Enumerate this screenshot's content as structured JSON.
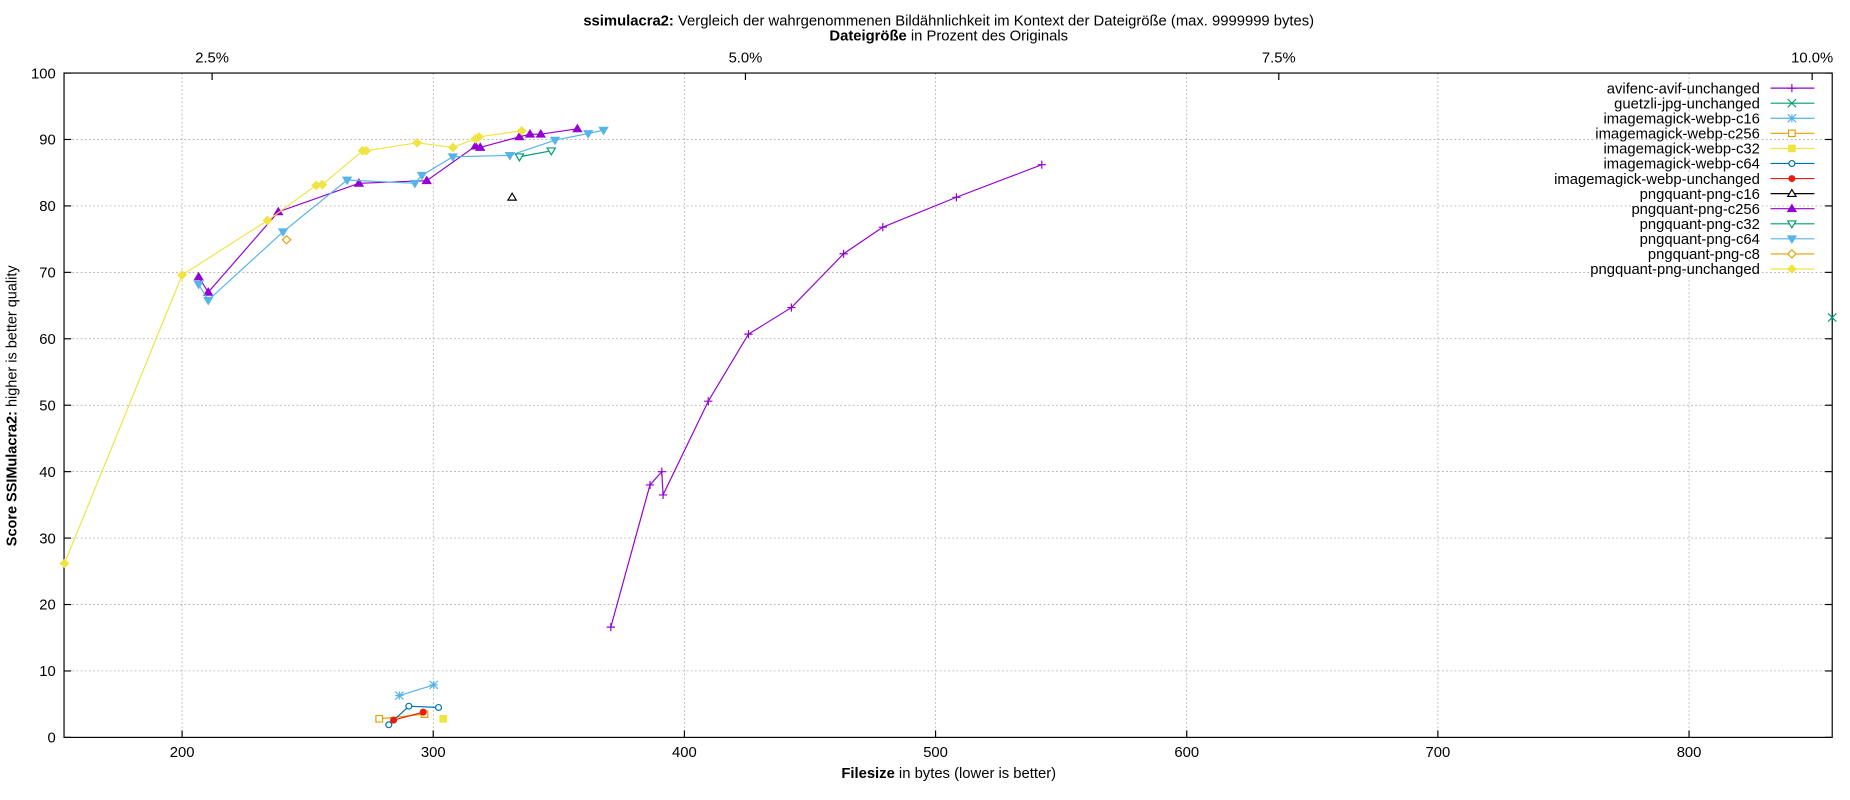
{
  "chart_data": {
    "type": "line",
    "title_bold": "ssimulacra2:",
    "title_rest": " Vergleich der wahrgenommenen Bildähnlichkeit im Kontext der Dateigröße (max. 9999999 bytes)",
    "x2label_bold": "Dateigröße",
    "x2label_rest": " in Prozent des Originals",
    "xlabel_bold": "Filesize",
    "xlabel_rest": " in bytes (lower is better)",
    "ylabel_bold": "Score SSIMulacra2:",
    "ylabel_rest": " higher is better quality",
    "xlim": [
      153,
      857
    ],
    "xticks": [
      200,
      300,
      400,
      500,
      600,
      700,
      800
    ],
    "x2lim": [
      1.806,
      10.094
    ],
    "x2ticks": [
      {
        "value": 2.5,
        "label": "2.5%"
      },
      {
        "value": 5,
        "label": "5.0%"
      },
      {
        "value": 7.5,
        "label": "7.5%"
      },
      {
        "value": 10,
        "label": "10.0%"
      }
    ],
    "ylim": [
      0,
      100
    ],
    "yticks": [
      0,
      10,
      20,
      30,
      40,
      50,
      60,
      70,
      80,
      90,
      100
    ],
    "grid": true,
    "legend": "top-right",
    "series": [
      {
        "name": "avifenc-avif-unchanged",
        "color": "#9400d3",
        "marker": "plus",
        "x": [
          370.7,
          386.3,
          391.0,
          391.5,
          409.5,
          425.5,
          442.6,
          463.4,
          479.0,
          508.3,
          542.3
        ],
        "y": [
          16.6,
          38.0,
          40.0,
          36.5,
          50.6,
          60.7,
          64.7,
          72.8,
          76.8,
          81.3,
          86.2
        ]
      },
      {
        "name": "guetzli-jpg-unchanged",
        "color": "#009e73",
        "marker": "cross",
        "x": [
          857.0
        ],
        "y": [
          63.2
        ]
      },
      {
        "name": "imagemagick-webp-c16",
        "color": "#56b4e9",
        "marker": "star",
        "x": [
          286.5,
          300.2
        ],
        "y": [
          6.3,
          7.9
        ]
      },
      {
        "name": "imagemagick-webp-c256",
        "color": "#e69f00",
        "marker": "square-open",
        "x": [
          278.5,
          296.5
        ],
        "y": [
          2.8,
          3.5
        ]
      },
      {
        "name": "imagemagick-webp-c32",
        "color": "#f0e442",
        "marker": "square-filled",
        "x": [
          304.0
        ],
        "y": [
          2.8
        ]
      },
      {
        "name": "imagemagick-webp-c64",
        "color": "#0072b2",
        "marker": "circle-open",
        "x": [
          282.3,
          290.3,
          302.1
        ],
        "y": [
          1.9,
          4.7,
          4.5
        ]
      },
      {
        "name": "imagemagick-webp-unchanged",
        "color": "#e51e10",
        "marker": "circle-filled",
        "x": [
          284.2,
          296.0
        ],
        "y": [
          2.6,
          3.8
        ]
      },
      {
        "name": "pngquant-png-c16",
        "color": "#000000",
        "marker": "triangle-open",
        "x": [
          331.4
        ],
        "y": [
          81.3
        ]
      },
      {
        "name": "pngquant-png-c256",
        "color": "#9400d3",
        "marker": "triangle-filled",
        "x": [
          206.6,
          210.4,
          238.3,
          270.4,
          297.4,
          316.8,
          318.7,
          334.3,
          338.5,
          342.8,
          357.4
        ],
        "y": [
          69.3,
          67.0,
          79.1,
          83.4,
          83.8,
          89.0,
          88.8,
          90.4,
          90.8,
          90.8,
          91.6
        ]
      },
      {
        "name": "pngquant-png-c32",
        "color": "#009e73",
        "marker": "tridown-open",
        "x": [
          334.3,
          347.0
        ],
        "y": [
          87.4,
          88.3
        ]
      },
      {
        "name": "pngquant-png-c64",
        "color": "#56b4e9",
        "marker": "tridown-filled",
        "x": [
          206.6,
          210.4,
          240.2,
          265.7,
          292.7,
          295.5,
          307.8,
          330.5,
          348.5,
          361.7,
          367.8
        ],
        "y": [
          68.2,
          65.8,
          76.1,
          83.9,
          83.4,
          84.6,
          87.4,
          87.6,
          89.9,
          90.9,
          91.4
        ]
      },
      {
        "name": "pngquant-png-c8",
        "color": "#e69f00",
        "marker": "diamond-open",
        "x": [
          241.6
        ],
        "y": [
          74.9
        ]
      },
      {
        "name": "pngquant-png-unchanged",
        "color": "#f0e442",
        "marker": "diamond-filled",
        "x": [
          153.2,
          200.0,
          234.0,
          253.4,
          255.8,
          271.9,
          273.3,
          293.6,
          307.8,
          316.8,
          318.2,
          335.2
        ],
        "y": [
          26.2,
          69.6,
          77.8,
          83.1,
          83.2,
          88.3,
          88.3,
          89.5,
          88.8,
          90.1,
          90.4,
          91.3
        ]
      }
    ]
  }
}
